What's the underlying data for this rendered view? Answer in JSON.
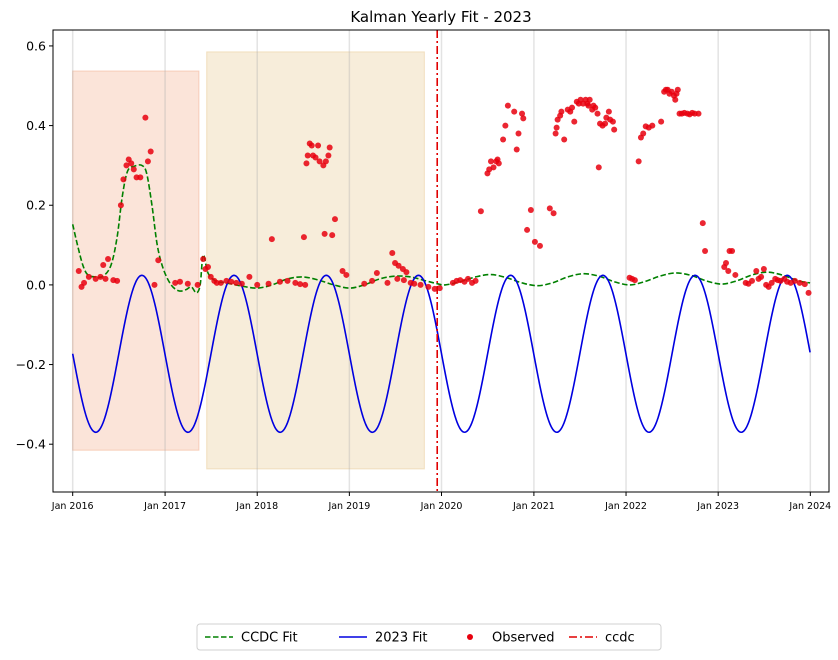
{
  "chart_data": {
    "type": "line",
    "title": "Kalman Yearly Fit - 2023",
    "xlabel": "",
    "ylabel": "",
    "xlim": [
      "2015-10-15",
      "2024-03-15"
    ],
    "ylim": [
      -0.52,
      0.64
    ],
    "x_ticks": [
      "2016-01-01",
      "2017-01-01",
      "2018-01-01",
      "2019-01-01",
      "2020-01-01",
      "2021-01-01",
      "2022-01-01",
      "2023-01-01",
      "2024-01-01"
    ],
    "x_tick_labels": [
      "Jan 2016",
      "Jan 2017",
      "Jan 2018",
      "Jan 2019",
      "Jan 2020",
      "Jan 2021",
      "Jan 2022",
      "Jan 2023",
      "Jan 2024"
    ],
    "y_ticks": [
      -0.4,
      -0.2,
      0.0,
      0.2,
      0.4,
      0.6
    ],
    "y_tick_labels": [
      "−0.4",
      "−0.2",
      "0.0",
      "0.2",
      "0.4",
      "0.6"
    ],
    "grid": "vertical at x ticks",
    "legend_position": "bottom-center",
    "shaded_regions": [
      {
        "x_start": "2016-01-01",
        "x_end": "2017-05-15",
        "y_start": -0.415,
        "y_end": 0.537,
        "color": "#f4b89a"
      },
      {
        "x_start": "2017-06-15",
        "x_end": "2019-10-25",
        "y_start": -0.462,
        "y_end": 0.585,
        "color": "#ebcf9f"
      }
    ],
    "vertical_lines": [
      {
        "name": "ccdc",
        "x": "2019-12-15",
        "color": "#e00000",
        "style": "dash-dot"
      }
    ],
    "series": [
      {
        "name": "CCDC Fit",
        "style": "dashed",
        "color": "#008000",
        "points": [
          [
            "2016-01-01",
            0.152
          ],
          [
            "2016-01-20",
            0.1
          ],
          [
            "2016-02-10",
            0.05
          ],
          [
            "2016-03-01",
            0.025
          ],
          [
            "2016-04-01",
            0.02
          ],
          [
            "2016-05-01",
            0.022
          ],
          [
            "2016-06-01",
            0.05
          ],
          [
            "2016-06-25",
            0.12
          ],
          [
            "2016-07-15",
            0.22
          ],
          [
            "2016-08-05",
            0.285
          ],
          [
            "2016-09-01",
            0.298
          ],
          [
            "2016-10-01",
            0.3
          ],
          [
            "2016-10-20",
            0.28
          ],
          [
            "2016-11-10",
            0.2
          ],
          [
            "2016-12-01",
            0.1
          ],
          [
            "2016-12-25",
            0.04
          ],
          [
            "2017-01-25",
            0.0
          ],
          [
            "2017-02-25",
            -0.015
          ],
          [
            "2017-03-25",
            -0.012
          ],
          [
            "2017-04-15",
            -0.005
          ],
          [
            "2017-05-05",
            -0.02
          ],
          [
            "2017-05-20",
            0.0
          ],
          [
            "2017-06-01",
            0.075
          ],
          [
            "2017-06-20",
            0.03
          ],
          [
            "2017-07-20",
            0.01
          ],
          [
            "2017-09-01",
            0.005
          ],
          [
            "2017-11-01",
            -0.003
          ],
          [
            "2018-01-01",
            -0.008
          ],
          [
            "2018-03-01",
            0.0
          ],
          [
            "2018-05-01",
            0.015
          ],
          [
            "2018-07-01",
            0.02
          ],
          [
            "2018-09-01",
            0.012
          ],
          [
            "2018-11-01",
            0.0
          ],
          [
            "2019-01-01",
            -0.008
          ],
          [
            "2019-03-01",
            0.0
          ],
          [
            "2019-05-01",
            0.015
          ],
          [
            "2019-07-01",
            0.022
          ],
          [
            "2019-09-01",
            0.02
          ],
          [
            "2019-11-01",
            0.01
          ],
          [
            "2019-12-15",
            0.003
          ],
          [
            "2020-01-15",
            0.0
          ],
          [
            "2020-03-15",
            0.008
          ],
          [
            "2020-05-15",
            0.02
          ],
          [
            "2020-07-15",
            0.026
          ],
          [
            "2020-09-15",
            0.018
          ],
          [
            "2020-11-15",
            0.005
          ],
          [
            "2021-01-15",
            -0.002
          ],
          [
            "2021-03-15",
            0.005
          ],
          [
            "2021-05-15",
            0.02
          ],
          [
            "2021-07-15",
            0.028
          ],
          [
            "2021-09-15",
            0.022
          ],
          [
            "2021-11-15",
            0.008
          ],
          [
            "2022-01-15",
            0.0
          ],
          [
            "2022-03-15",
            0.008
          ],
          [
            "2022-05-15",
            0.022
          ],
          [
            "2022-07-15",
            0.03
          ],
          [
            "2022-09-15",
            0.024
          ],
          [
            "2022-11-15",
            0.01
          ],
          [
            "2023-01-15",
            0.002
          ],
          [
            "2023-03-15",
            0.01
          ],
          [
            "2023-05-15",
            0.025
          ],
          [
            "2023-07-15",
            0.032
          ],
          [
            "2023-09-15",
            0.024
          ],
          [
            "2023-11-15",
            0.01
          ],
          [
            "2023-12-31",
            0.005
          ]
        ]
      },
      {
        "name": "2023 Fit",
        "style": "solid",
        "color": "#0000e0",
        "sinusoid": {
          "start": "2016-01-01",
          "end": "2023-12-31",
          "mean": -0.173,
          "amplitude": 0.197,
          "peak_date": "2016-10-01",
          "period_days": 365.25
        }
      }
    ],
    "observed": {
      "name": "Observed",
      "color": "#e8000e",
      "points": [
        [
          "2016-01-25",
          0.035
        ],
        [
          "2016-02-05",
          -0.005
        ],
        [
          "2016-02-15",
          0.005
        ],
        [
          "2016-03-05",
          0.02
        ],
        [
          "2016-04-01",
          0.015
        ],
        [
          "2016-04-20",
          0.02
        ],
        [
          "2016-05-01",
          0.05
        ],
        [
          "2016-05-10",
          0.015
        ],
        [
          "2016-05-20",
          0.065
        ],
        [
          "2016-06-10",
          0.012
        ],
        [
          "2016-06-25",
          0.01
        ],
        [
          "2016-07-10",
          0.2
        ],
        [
          "2016-07-20",
          0.265
        ],
        [
          "2016-08-01",
          0.3
        ],
        [
          "2016-08-10",
          0.315
        ],
        [
          "2016-08-20",
          0.305
        ],
        [
          "2016-08-30",
          0.29
        ],
        [
          "2016-09-10",
          0.27
        ],
        [
          "2016-09-25",
          0.27
        ],
        [
          "2016-10-15",
          0.42
        ],
        [
          "2016-10-25",
          0.31
        ],
        [
          "2016-11-05",
          0.335
        ],
        [
          "2016-11-20",
          0.0
        ],
        [
          "2016-12-05",
          0.062
        ],
        [
          "2017-02-10",
          0.005
        ],
        [
          "2017-03-01",
          0.008
        ],
        [
          "2017-04-01",
          0.003
        ],
        [
          "2017-05-10",
          0.0
        ],
        [
          "2017-06-01",
          0.065
        ],
        [
          "2017-06-10",
          0.04
        ],
        [
          "2017-06-20",
          0.045
        ],
        [
          "2017-07-01",
          0.02
        ],
        [
          "2017-07-15",
          0.01
        ],
        [
          "2017-07-25",
          0.005
        ],
        [
          "2017-08-10",
          0.005
        ],
        [
          "2017-09-01",
          0.01
        ],
        [
          "2017-09-20",
          0.008
        ],
        [
          "2017-10-10",
          0.005
        ],
        [
          "2017-11-01",
          0.003
        ],
        [
          "2017-12-01",
          0.02
        ],
        [
          "2018-01-01",
          0.0
        ],
        [
          "2018-02-15",
          0.003
        ],
        [
          "2018-02-28",
          0.115
        ],
        [
          "2018-04-01",
          0.008
        ],
        [
          "2018-05-01",
          0.01
        ],
        [
          "2018-06-01",
          0.005
        ],
        [
          "2018-06-20",
          0.002
        ],
        [
          "2018-07-10",
          0.0
        ],
        [
          "2018-07-05",
          0.12
        ],
        [
          "2018-07-15",
          0.305
        ],
        [
          "2018-07-20",
          0.325
        ],
        [
          "2018-07-28",
          0.355
        ],
        [
          "2018-08-05",
          0.35
        ],
        [
          "2018-08-10",
          0.325
        ],
        [
          "2018-08-20",
          0.32
        ],
        [
          "2018-08-30",
          0.35
        ],
        [
          "2018-09-05",
          0.31
        ],
        [
          "2018-09-20",
          0.3
        ],
        [
          "2018-09-30",
          0.31
        ],
        [
          "2018-10-10",
          0.325
        ],
        [
          "2018-10-15",
          0.345
        ],
        [
          "2018-09-25",
          0.128
        ],
        [
          "2018-10-25",
          0.125
        ],
        [
          "2018-11-05",
          0.165
        ],
        [
          "2018-12-05",
          0.035
        ],
        [
          "2018-12-20",
          0.025
        ],
        [
          "2019-03-01",
          0.003
        ],
        [
          "2019-04-01",
          0.01
        ],
        [
          "2019-04-20",
          0.03
        ],
        [
          "2019-06-01",
          0.005
        ],
        [
          "2019-06-20",
          0.08
        ],
        [
          "2019-07-01",
          0.055
        ],
        [
          "2019-07-15",
          0.048
        ],
        [
          "2019-08-01",
          0.04
        ],
        [
          "2019-08-15",
          0.032
        ],
        [
          "2019-07-10",
          0.015
        ],
        [
          "2019-08-05",
          0.012
        ],
        [
          "2019-09-01",
          0.005
        ],
        [
          "2019-09-15",
          0.003
        ],
        [
          "2019-10-10",
          0.0
        ],
        [
          "2019-11-10",
          -0.005
        ],
        [
          "2019-12-05",
          -0.01
        ],
        [
          "2019-12-25",
          -0.008
        ],
        [
          "2020-02-15",
          0.005
        ],
        [
          "2020-03-01",
          0.01
        ],
        [
          "2020-03-15",
          0.012
        ],
        [
          "2020-04-01",
          0.008
        ],
        [
          "2020-04-15",
          0.015
        ],
        [
          "2020-05-01",
          0.005
        ],
        [
          "2020-05-15",
          0.01
        ],
        [
          "2020-06-05",
          0.185
        ],
        [
          "2020-07-01",
          0.28
        ],
        [
          "2020-07-08",
          0.29
        ],
        [
          "2020-07-15",
          0.31
        ],
        [
          "2020-07-25",
          0.295
        ],
        [
          "2020-08-05",
          0.31
        ],
        [
          "2020-08-10",
          0.315
        ],
        [
          "2020-08-15",
          0.305
        ],
        [
          "2020-09-01",
          0.365
        ],
        [
          "2020-09-10",
          0.4
        ],
        [
          "2020-09-20",
          0.45
        ],
        [
          "2020-10-15",
          0.435
        ],
        [
          "2020-10-25",
          0.34
        ],
        [
          "2020-11-01",
          0.38
        ],
        [
          "2020-11-15",
          0.43
        ],
        [
          "2020-11-20",
          0.418
        ],
        [
          "2020-12-05",
          0.138
        ],
        [
          "2020-12-20",
          0.188
        ],
        [
          "2021-01-05",
          0.108
        ],
        [
          "2021-01-25",
          0.098
        ],
        [
          "2021-03-05",
          0.192
        ],
        [
          "2021-03-20",
          0.18
        ],
        [
          "2021-03-28",
          0.38
        ],
        [
          "2021-04-01",
          0.395
        ],
        [
          "2021-04-05",
          0.415
        ],
        [
          "2021-04-15",
          0.425
        ],
        [
          "2021-04-20",
          0.435
        ],
        [
          "2021-05-01",
          0.365
        ],
        [
          "2021-05-15",
          0.44
        ],
        [
          "2021-05-25",
          0.435
        ],
        [
          "2021-06-01",
          0.445
        ],
        [
          "2021-06-10",
          0.41
        ],
        [
          "2021-06-20",
          0.46
        ],
        [
          "2021-06-28",
          0.455
        ],
        [
          "2021-07-05",
          0.465
        ],
        [
          "2021-07-15",
          0.455
        ],
        [
          "2021-07-25",
          0.465
        ],
        [
          "2021-08-01",
          0.455
        ],
        [
          "2021-08-05",
          0.45
        ],
        [
          "2021-08-10",
          0.465
        ],
        [
          "2021-08-20",
          0.44
        ],
        [
          "2021-08-25",
          0.45
        ],
        [
          "2021-09-01",
          0.445
        ],
        [
          "2021-09-10",
          0.43
        ],
        [
          "2021-09-15",
          0.295
        ],
        [
          "2021-09-20",
          0.405
        ],
        [
          "2021-09-30",
          0.4
        ],
        [
          "2021-10-10",
          0.405
        ],
        [
          "2021-10-15",
          0.42
        ],
        [
          "2021-10-25",
          0.435
        ],
        [
          "2021-10-30",
          0.415
        ],
        [
          "2021-11-10",
          0.41
        ],
        [
          "2021-11-15",
          0.39
        ],
        [
          "2022-01-15",
          0.018
        ],
        [
          "2022-01-25",
          0.015
        ],
        [
          "2022-02-05",
          0.012
        ],
        [
          "2022-02-20",
          0.31
        ],
        [
          "2022-03-01",
          0.37
        ],
        [
          "2022-03-10",
          0.38
        ],
        [
          "2022-03-20",
          0.398
        ],
        [
          "2022-04-01",
          0.395
        ],
        [
          "2022-04-15",
          0.4
        ],
        [
          "2022-05-20",
          0.41
        ],
        [
          "2022-06-01",
          0.485
        ],
        [
          "2022-06-08",
          0.49
        ],
        [
          "2022-06-15",
          0.49
        ],
        [
          "2022-06-22",
          0.48
        ],
        [
          "2022-07-01",
          0.485
        ],
        [
          "2022-07-10",
          0.475
        ],
        [
          "2022-07-15",
          0.465
        ],
        [
          "2022-07-20",
          0.48
        ],
        [
          "2022-07-25",
          0.49
        ],
        [
          "2022-08-01",
          0.43
        ],
        [
          "2022-08-10",
          0.43
        ],
        [
          "2022-08-20",
          0.432
        ],
        [
          "2022-09-01",
          0.43
        ],
        [
          "2022-09-10",
          0.428
        ],
        [
          "2022-09-20",
          0.432
        ],
        [
          "2022-09-30",
          0.43
        ],
        [
          "2022-10-15",
          0.43
        ],
        [
          "2022-11-01",
          0.155
        ],
        [
          "2022-11-10",
          0.085
        ],
        [
          "2023-01-25",
          0.045
        ],
        [
          "2023-02-01",
          0.055
        ],
        [
          "2023-02-10",
          0.035
        ],
        [
          "2023-02-15",
          0.085
        ],
        [
          "2023-02-25",
          0.085
        ],
        [
          "2023-03-10",
          0.025
        ],
        [
          "2023-04-20",
          0.005
        ],
        [
          "2023-05-01",
          0.003
        ],
        [
          "2023-05-15",
          0.01
        ],
        [
          "2023-06-01",
          0.035
        ],
        [
          "2023-06-10",
          0.015
        ],
        [
          "2023-06-20",
          0.02
        ],
        [
          "2023-07-01",
          0.04
        ],
        [
          "2023-07-10",
          0.0
        ],
        [
          "2023-07-20",
          -0.005
        ],
        [
          "2023-08-01",
          0.005
        ],
        [
          "2023-08-15",
          0.015
        ],
        [
          "2023-08-25",
          0.012
        ],
        [
          "2023-09-05",
          0.01
        ],
        [
          "2023-09-20",
          0.015
        ],
        [
          "2023-10-01",
          0.008
        ],
        [
          "2023-10-15",
          0.005
        ],
        [
          "2023-11-01",
          0.01
        ],
        [
          "2023-11-20",
          0.005
        ],
        [
          "2023-12-10",
          0.002
        ],
        [
          "2023-12-25",
          -0.02
        ]
      ]
    }
  },
  "legend": {
    "items": [
      {
        "label": "CCDC Fit",
        "color": "#008000",
        "style": "dashed"
      },
      {
        "label": "2023 Fit",
        "color": "#0000e0",
        "style": "solid"
      },
      {
        "label": "Observed",
        "color": "#e8000e",
        "style": "marker"
      },
      {
        "label": "ccdc",
        "color": "#e00000",
        "style": "dash-dot"
      }
    ]
  }
}
